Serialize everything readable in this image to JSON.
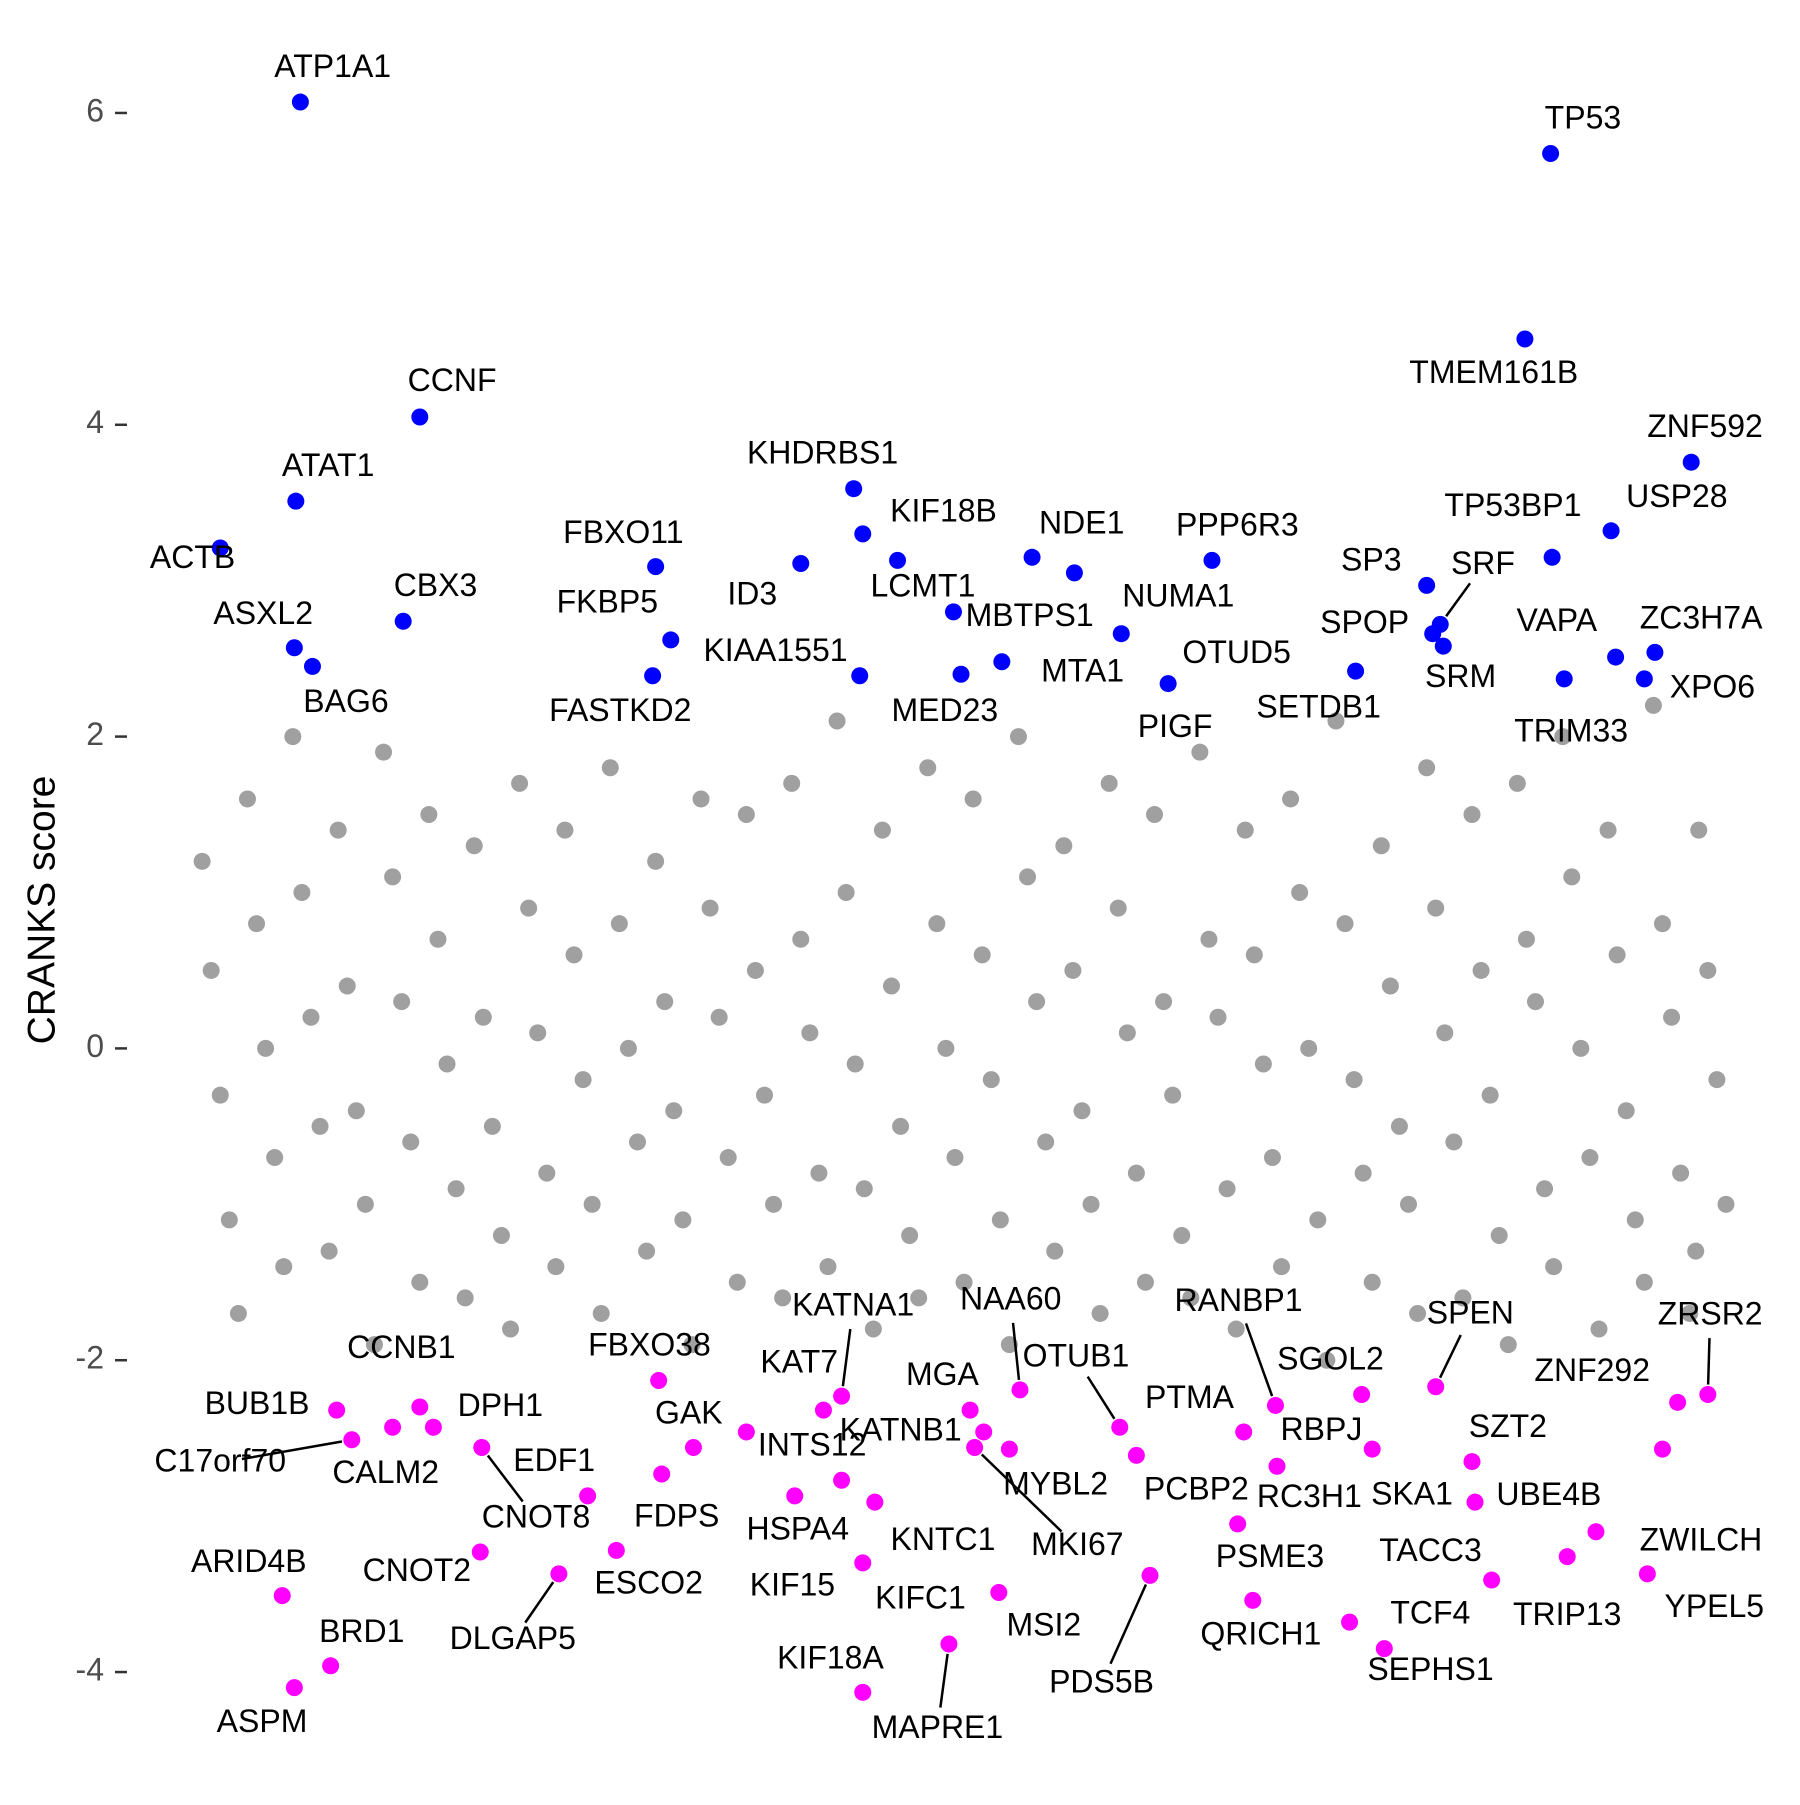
{
  "chart_data": {
    "type": "scatter",
    "y_label": "CRANKS score",
    "ylim": [
      -4.5,
      6.5
    ],
    "yticks": [
      -4,
      -2,
      0,
      2,
      4,
      6
    ],
    "xlim": [
      -1,
      101
    ],
    "series": [
      {
        "color": "#a0a0a0",
        "x": [
          0,
          0.6,
          1.2,
          1.8,
          2.4,
          3,
          3.6,
          4.2,
          4.8,
          5.4,
          6,
          6.6,
          7.2,
          7.8,
          8.4,
          9,
          9.6,
          10.2,
          10.8,
          11.4,
          12,
          12.6,
          13.2,
          13.8,
          14.4,
          15,
          15.6,
          16.2,
          16.8,
          17.4,
          18,
          18.6,
          19.2,
          19.8,
          20.4,
          21,
          21.6,
          22.2,
          22.8,
          23.4,
          24,
          24.6,
          25.2,
          25.8,
          26.4,
          27,
          27.6,
          28.2,
          28.8,
          29.4,
          30,
          30.6,
          31.2,
          31.8,
          32.4,
          33,
          33.6,
          34.2,
          34.8,
          35.4,
          36,
          36.6,
          37.2,
          37.8,
          38.4,
          39,
          39.6,
          40.2,
          40.8,
          41.4,
          42,
          42.6,
          43.2,
          43.8,
          44.4,
          45,
          45.6,
          46.2,
          46.8,
          47.4,
          48,
          48.6,
          49.2,
          49.8,
          50.4,
          51,
          51.6,
          52.2,
          52.8,
          53.4,
          54,
          54.6,
          55.2,
          55.8,
          56.4,
          57,
          57.6,
          58.2,
          58.8,
          59.4,
          60,
          60.6,
          61.2,
          61.8,
          62.4,
          63,
          63.6,
          64.2,
          64.8,
          65.4,
          66,
          66.6,
          67.2,
          67.8,
          68.4,
          69,
          69.6,
          70.2,
          70.8,
          71.4,
          72,
          72.6,
          73.2,
          73.8,
          74.4,
          75,
          75.6,
          76.2,
          76.8,
          77.4,
          78,
          78.6,
          79.2,
          79.8,
          80.4,
          81,
          81.6,
          82.2,
          82.8,
          83.4,
          84,
          84.6,
          85.2,
          85.8,
          86.4,
          87,
          87.6,
          88.2,
          88.8,
          89.4,
          90,
          90.6,
          91.2,
          91.8,
          92.4,
          93,
          93.6,
          94.2,
          94.8,
          95.4,
          96,
          96.6,
          97.2,
          97.8,
          98.4,
          99,
          99.6,
          100.2,
          100.8,
          98.8
        ],
        "values": [
          1.2,
          0.5,
          -0.3,
          -1.1,
          -1.7,
          1.6,
          0.8,
          0.0,
          -0.7,
          -1.4,
          2.0,
          1.0,
          0.2,
          -0.5,
          -1.3,
          1.4,
          0.4,
          -0.4,
          -1.0,
          -1.9,
          1.9,
          1.1,
          0.3,
          -0.6,
          -1.5,
          1.5,
          0.7,
          -0.1,
          -0.9,
          -1.6,
          1.3,
          0.2,
          -0.5,
          -1.2,
          -1.8,
          1.7,
          0.9,
          0.1,
          -0.8,
          -1.4,
          1.4,
          0.6,
          -0.2,
          -1.0,
          -1.7,
          1.8,
          0.8,
          0.0,
          -0.6,
          -1.3,
          1.2,
          0.3,
          -0.4,
          -1.1,
          -1.9,
          1.6,
          0.9,
          0.2,
          -0.7,
          -1.5,
          1.5,
          0.5,
          -0.3,
          -1.0,
          -1.6,
          1.7,
          0.7,
          0.1,
          -0.8,
          -1.4,
          2.1,
          1.0,
          -0.1,
          -0.9,
          -1.8,
          1.4,
          0.4,
          -0.5,
          -1.2,
          -1.6,
          1.8,
          0.8,
          0.0,
          -0.7,
          -1.5,
          1.6,
          0.6,
          -0.2,
          -1.1,
          -1.9,
          2.0,
          1.1,
          0.3,
          -0.6,
          -1.3,
          1.3,
          0.5,
          -0.4,
          -1.0,
          -1.7,
          1.7,
          0.9,
          0.1,
          -0.8,
          -1.5,
          1.5,
          0.3,
          -0.3,
          -1.2,
          -1.6,
          1.9,
          0.7,
          0.2,
          -0.9,
          -1.8,
          1.4,
          0.6,
          -0.1,
          -0.7,
          -1.4,
          1.6,
          1.0,
          0.0,
          -1.1,
          -2.0,
          2.1,
          0.8,
          -0.2,
          -0.8,
          -1.5,
          1.3,
          0.4,
          -0.5,
          -1.0,
          -1.7,
          1.8,
          0.9,
          0.1,
          -0.6,
          -1.6,
          1.5,
          0.5,
          -0.3,
          -1.2,
          -1.9,
          1.7,
          0.7,
          0.3,
          -0.9,
          -1.4,
          2.0,
          1.1,
          0.0,
          -0.7,
          -1.8,
          1.4,
          0.6,
          -0.4,
          -1.1,
          -1.5,
          2.2,
          0.8,
          0.2,
          -0.8,
          -1.7,
          1.4,
          0.5,
          -0.2,
          -1.0,
          -1.3
        ]
      },
      {
        "color": "#0000ff",
        "labels": [
          "ATP1A1",
          "TP53",
          "TMEM161B",
          "CCNF",
          "ZNF592",
          "ATAT1",
          "KHDRBS1",
          "USP28",
          "ACTB",
          "KIF18B",
          "TP53BP1",
          "NDE1",
          "PPP6R3",
          "FBXO11",
          "ID3",
          "LCMT1",
          "SP3",
          "SRF",
          "NUMA1",
          "CBX3",
          "FKBP5",
          "MBTPS1",
          "SPOP",
          "VAPA",
          "ZC3H7A",
          "ASXL2",
          "KIAA1551",
          "MTA1",
          "OTUD5",
          "SRM",
          "FASTKD2",
          "XPO6",
          "BAG6",
          "MED23",
          "PIGF",
          "SETDB1",
          "TRIM33"
        ],
        "x": [
          6.5,
          89.2,
          87.5,
          14.4,
          98.5,
          6.2,
          43.1,
          93.2,
          1.2,
          43.7,
          89.3,
          54.9,
          66.8,
          30.0,
          39.6,
          46.0,
          81.0,
          81.9,
          57.7,
          13.3,
          31.0,
          49.7,
          81.4,
          93.5,
          96.1,
          6.1,
          43.5,
          52.9,
          60.8,
          82.1,
          29.8,
          95.4,
          7.3,
          50.2,
          63.9,
          76.3,
          90.1
        ],
        "values": [
          6.07,
          5.74,
          4.55,
          4.05,
          3.76,
          3.51,
          3.59,
          3.32,
          3.21,
          3.3,
          3.15,
          3.15,
          3.13,
          3.09,
          3.11,
          3.13,
          2.97,
          2.72,
          3.05,
          2.74,
          2.62,
          2.8,
          2.66,
          2.51,
          2.54,
          2.57,
          2.39,
          2.48,
          2.66,
          2.58,
          2.39,
          2.37,
          2.45,
          2.4,
          2.34,
          2.42,
          2.37
        ]
      },
      {
        "color": "#ff00ff",
        "labels": [
          "CCNB1",
          "FBXO38",
          "KATNA1",
          "NAA60",
          "RANBP1",
          "SPEN",
          "ZRSR2",
          "KAT7",
          "MGA",
          "OTUB1",
          "SGOL2",
          "ZNF292",
          "BUB1B",
          "DPH1",
          "PTMA",
          "GAK",
          "C17orf70",
          "CALM2",
          "CNOT8",
          "EDF1",
          "INTS12",
          "KATNB1",
          "MYBL2",
          "MKI67",
          "RBPJ",
          "SZT2",
          "FDPS",
          "HSPA4",
          "KIF15",
          "KNTC1",
          "KIFC1",
          "MSI2",
          "KIF18A",
          "MAPRE1",
          "PCBP2",
          "RC3H1",
          "SKA1",
          "UBE4B",
          "CNOT2",
          "ESCO2",
          "DLGAP5",
          "PSME3",
          "QRICH1",
          "PDS5B",
          "TACC3",
          "TCF4",
          "SEPHS1",
          "TRIP13",
          "ZWILCH",
          "YPEL5",
          "ARID4B",
          "BRD1",
          "ASPM"
        ],
        "x": [
          14.4,
          30.2,
          42.3,
          54.1,
          71.0,
          81.6,
          99.6,
          41.1,
          50.8,
          60.7,
          76.7,
          97.6,
          8.9,
          15.3,
          68.9,
          32.5,
          9.9,
          12.6,
          18.5,
          25.5,
          36.0,
          51.7,
          53.4,
          51.1,
          77.4,
          96.6,
          30.4,
          42.3,
          39.2,
          44.5,
          43.7,
          52.7,
          43.7,
          49.4,
          61.8,
          71.1,
          84.0,
          84.2,
          18.4,
          27.4,
          23.6,
          68.5,
          69.5,
          62.7,
          85.3,
          75.9,
          78.2,
          90.3,
          92.2,
          95.6,
          5.3,
          8.5,
          6.1
        ],
        "values": [
          -2.3,
          -2.13,
          -2.23,
          -2.19,
          -2.29,
          -2.17,
          -2.22,
          -2.32,
          -2.32,
          -2.43,
          -2.22,
          -2.27,
          -2.32,
          -2.43,
          -2.46,
          -2.56,
          -2.51,
          -2.43,
          -2.56,
          -2.87,
          -2.46,
          -2.46,
          -2.57,
          -2.56,
          -2.57,
          -2.57,
          -2.73,
          -2.77,
          -2.87,
          -2.91,
          -3.3,
          -3.49,
          -4.13,
          -3.82,
          -2.61,
          -2.68,
          -2.65,
          -2.91,
          -3.23,
          -3.22,
          -3.37,
          -3.05,
          -3.54,
          -3.38,
          -3.41,
          -3.68,
          -3.85,
          -3.26,
          -3.1,
          -3.37,
          -3.51,
          -3.96,
          -4.1
        ]
      }
    ]
  }
}
